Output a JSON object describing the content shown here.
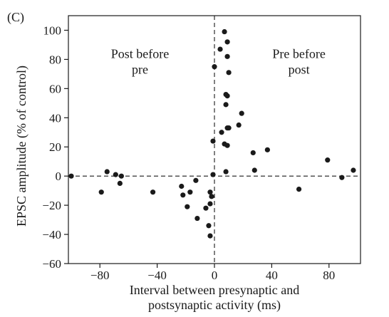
{
  "chart_data": {
    "type": "scatter",
    "panel_label": "(C)",
    "xlabel": [
      "Interval between presynaptic and",
      "postsynaptic activity (ms)"
    ],
    "ylabel": "EPSC amplitude (% of control)",
    "xlim": [
      -102,
      102
    ],
    "ylim": [
      -60,
      110
    ],
    "xticks": [
      -80,
      -40,
      0,
      40,
      80
    ],
    "xtick_labels": [
      "−80",
      "−40",
      "0",
      "40",
      "80"
    ],
    "yticks": [
      100,
      80,
      60,
      40,
      20,
      0,
      -20,
      -40,
      -60
    ],
    "ytick_labels": [
      "100",
      "80",
      "60",
      "40",
      "20",
      "0",
      "−20",
      "−40",
      "−60"
    ],
    "grid": false,
    "reference_lines": [
      {
        "axis": "x",
        "value": 0,
        "style": "dashed"
      },
      {
        "axis": "y",
        "value": 0,
        "style": "dashed"
      }
    ],
    "annotations": [
      {
        "lines": [
          "Post before",
          "pre"
        ],
        "x": -52,
        "y": 81
      },
      {
        "lines": [
          "Pre before",
          "post"
        ],
        "x": 59,
        "y": 81
      }
    ],
    "color": "#1a1a1a",
    "points": [
      {
        "x": -100,
        "y": 0
      },
      {
        "x": -79,
        "y": -11
      },
      {
        "x": -75,
        "y": 3
      },
      {
        "x": -69,
        "y": 1
      },
      {
        "x": -66,
        "y": -5
      },
      {
        "x": -65,
        "y": 0
      },
      {
        "x": -43,
        "y": -11
      },
      {
        "x": -23,
        "y": -7
      },
      {
        "x": -22,
        "y": -13
      },
      {
        "x": -19,
        "y": -21
      },
      {
        "x": -17,
        "y": -11
      },
      {
        "x": -13,
        "y": -3
      },
      {
        "x": -12,
        "y": -29
      },
      {
        "x": -6,
        "y": -22
      },
      {
        "x": -4,
        "y": -34
      },
      {
        "x": -3,
        "y": -41
      },
      {
        "x": -3,
        "y": -11
      },
      {
        "x": -3,
        "y": -19
      },
      {
        "x": -2,
        "y": -14
      },
      {
        "x": -1,
        "y": 24
      },
      {
        "x": -1,
        "y": 1
      },
      {
        "x": 0,
        "y": 75
      },
      {
        "x": 4,
        "y": 87
      },
      {
        "x": 5,
        "y": 30
      },
      {
        "x": 7,
        "y": 22
      },
      {
        "x": 7,
        "y": 99
      },
      {
        "x": 8,
        "y": 56
      },
      {
        "x": 8,
        "y": 49
      },
      {
        "x": 8,
        "y": 3
      },
      {
        "x": 9,
        "y": 92
      },
      {
        "x": 9,
        "y": 55
      },
      {
        "x": 9,
        "y": 82
      },
      {
        "x": 9,
        "y": 33
      },
      {
        "x": 9,
        "y": 21
      },
      {
        "x": 10,
        "y": 71
      },
      {
        "x": 10,
        "y": 33
      },
      {
        "x": 17,
        "y": 35
      },
      {
        "x": 19,
        "y": 43
      },
      {
        "x": 27,
        "y": 16
      },
      {
        "x": 28,
        "y": 4
      },
      {
        "x": 37,
        "y": 18
      },
      {
        "x": 59,
        "y": -9
      },
      {
        "x": 79,
        "y": 11
      },
      {
        "x": 89,
        "y": -1
      },
      {
        "x": 97,
        "y": 4
      }
    ]
  }
}
